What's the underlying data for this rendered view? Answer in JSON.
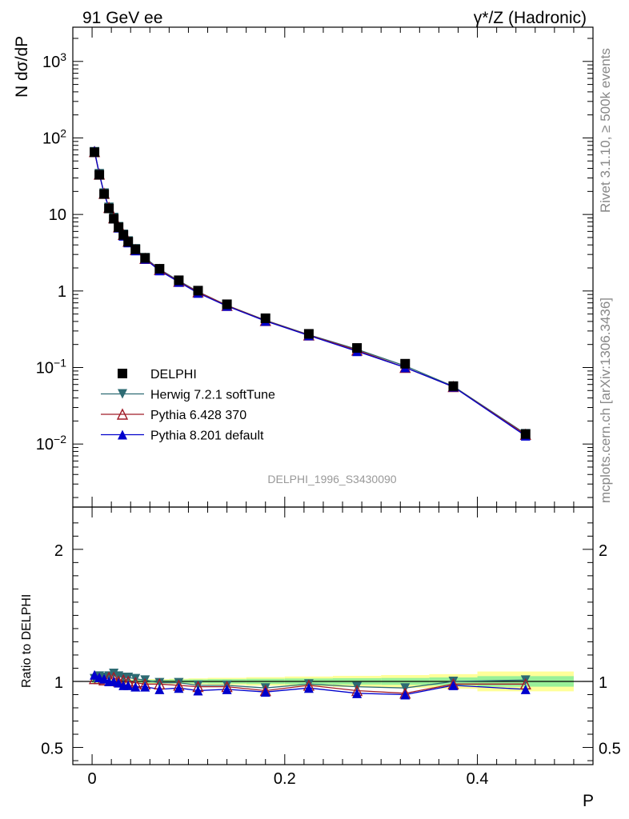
{
  "header": {
    "left_title": "91 GeV ee",
    "right_title_prefix": "γ*/Z (Hadronic)"
  },
  "side_text": {
    "rivet": "Rivet 3.1.10, ≥ 500k events",
    "mcplots": "mcplots.cern.ch [arXiv:1306.3436]"
  },
  "analysis_label": "DELPHI_1996_S3430090",
  "chart_data": [
    {
      "type": "line",
      "panel": "main",
      "ylabel": "N dσ/dP",
      "xlabel": "P",
      "yscale": "log",
      "xlim": [
        -0.02,
        0.52
      ],
      "ylim": [
        0.0015,
        2800
      ],
      "y_ticks": [
        {
          "value": 1000,
          "label": "10^3"
        },
        {
          "value": 100,
          "label": "10^2"
        },
        {
          "value": 10,
          "label": "10"
        },
        {
          "value": 1,
          "label": "1"
        },
        {
          "value": 0.1,
          "label": "10^-1"
        },
        {
          "value": 0.01,
          "label": "10^-2"
        }
      ],
      "x": [
        0.0025,
        0.0075,
        0.0125,
        0.0175,
        0.0225,
        0.0275,
        0.0325,
        0.0375,
        0.045,
        0.055,
        0.07,
        0.09,
        0.11,
        0.14,
        0.18,
        0.225,
        0.275,
        0.325,
        0.375,
        0.45
      ],
      "legend": [
        {
          "name": "DELPHI",
          "color": "#000000",
          "marker": "square"
        },
        {
          "name": "Herwig 7.2.1 softTune",
          "color": "#2d6b73",
          "marker": "triangle-down"
        },
        {
          "name": "Pythia 6.428 370",
          "color": "#a01c28",
          "marker": "triangle-up-open"
        },
        {
          "name": "Pythia 8.201 default",
          "color": "#0000cc",
          "marker": "triangle-up"
        }
      ],
      "series": [
        {
          "name": "DELPHI",
          "values": [
            65,
            33,
            18.5,
            12,
            8.8,
            6.8,
            5.4,
            4.4,
            3.5,
            2.7,
            1.95,
            1.38,
            1.01,
            0.67,
            0.44,
            0.275,
            0.18,
            0.112,
            0.057,
            0.0135
          ]
        },
        {
          "name": "Herwig 7.2.1 softTune",
          "values": [
            66,
            34,
            19,
            12.4,
            9.1,
            6.9,
            5.5,
            4.5,
            3.55,
            2.72,
            1.93,
            1.36,
            0.98,
            0.65,
            0.415,
            0.268,
            0.173,
            0.105,
            0.057,
            0.0136
          ]
        },
        {
          "name": "Pythia 6.428 370",
          "values": [
            66,
            33.5,
            18.8,
            12.3,
            9.0,
            6.85,
            5.45,
            4.45,
            3.45,
            2.65,
            1.9,
            1.33,
            0.97,
            0.645,
            0.41,
            0.265,
            0.168,
            0.1,
            0.056,
            0.0133
          ]
        },
        {
          "name": "Pythia 8.201 default",
          "values": [
            68,
            34,
            18.8,
            12.1,
            8.8,
            6.7,
            5.25,
            4.3,
            3.38,
            2.62,
            1.85,
            1.31,
            0.94,
            0.635,
            0.405,
            0.262,
            0.163,
            0.1,
            0.056,
            0.0128
          ]
        }
      ]
    },
    {
      "type": "line",
      "panel": "ratio",
      "ylabel": "Ratio to DELPHI",
      "xlabel": "P",
      "xlim": [
        -0.02,
        0.52
      ],
      "ylim": [
        0.37,
        2.32
      ],
      "y_ticks": [
        {
          "value": 2,
          "label": "2"
        },
        {
          "value": 1,
          "label": "1"
        },
        {
          "value": 0.5,
          "label": "0.5"
        }
      ],
      "x_ticks": [
        {
          "value": 0,
          "label": "0"
        },
        {
          "value": 0.2,
          "label": "0.2"
        },
        {
          "value": 0.4,
          "label": "0.4"
        }
      ],
      "x": [
        0.0025,
        0.0075,
        0.0125,
        0.0175,
        0.0225,
        0.0275,
        0.0325,
        0.0375,
        0.045,
        0.055,
        0.07,
        0.09,
        0.11,
        0.14,
        0.18,
        0.225,
        0.275,
        0.325,
        0.375,
        0.45
      ],
      "band_edges": [
        0,
        0.005,
        0.01,
        0.015,
        0.02,
        0.025,
        0.03,
        0.035,
        0.04,
        0.05,
        0.06,
        0.08,
        0.1,
        0.12,
        0.16,
        0.2,
        0.25,
        0.3,
        0.35,
        0.4,
        0.5
      ],
      "stat_band": [
        0.01,
        0.01,
        0.01,
        0.01,
        0.01,
        0.01,
        0.01,
        0.012,
        0.012,
        0.012,
        0.012,
        0.014,
        0.015,
        0.017,
        0.02,
        0.022,
        0.024,
        0.026,
        0.03,
        0.04
      ],
      "total_band": [
        0.015,
        0.015,
        0.015,
        0.015,
        0.015,
        0.015,
        0.015,
        0.016,
        0.016,
        0.016,
        0.017,
        0.02,
        0.023,
        0.027,
        0.032,
        0.037,
        0.042,
        0.048,
        0.055,
        0.075
      ],
      "series": [
        {
          "name": "Herwig 7.2.1 softTune",
          "values": [
            1.02,
            1.04,
            1.03,
            1.04,
            1.06,
            1.04,
            1.03,
            1.03,
            1.02,
            1.01,
            0.99,
            0.99,
            0.97,
            0.97,
            0.95,
            0.98,
            0.96,
            0.95,
            1.0,
            1.01
          ]
        },
        {
          "name": "Pythia 6.428 370",
          "values": [
            1.02,
            1.02,
            1.01,
            1.03,
            1.03,
            1.0,
            1.01,
            1.0,
            0.99,
            0.98,
            0.98,
            0.97,
            0.96,
            0.96,
            0.93,
            0.97,
            0.93,
            0.91,
            0.98,
            0.98
          ]
        },
        {
          "name": "Pythia 8.201 default",
          "values": [
            1.05,
            1.03,
            1.02,
            1.0,
            1.0,
            0.99,
            0.97,
            0.97,
            0.96,
            0.96,
            0.94,
            0.95,
            0.93,
            0.94,
            0.92,
            0.95,
            0.91,
            0.9,
            0.97,
            0.94
          ]
        }
      ]
    }
  ]
}
